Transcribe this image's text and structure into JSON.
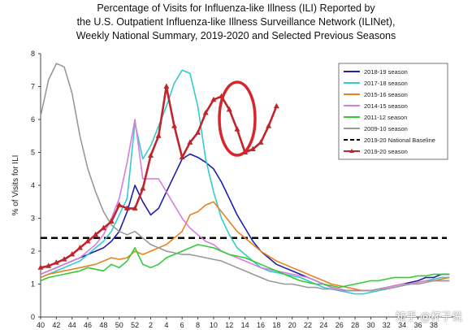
{
  "title_lines": [
    "Percentage of Visits for Influenza-like Illness (ILI) Reported by",
    "the U.S. Outpatient Influenza-like Illness Surveillance Network (ILINet),",
    "Weekly National Summary, 2019-2020 and Selected Previous Seasons"
  ],
  "watermark": "知乎 @杯子说",
  "chart_data": {
    "type": "line",
    "ylabel": "% of Visits for ILI",
    "xlabel": "",
    "ylim": [
      0,
      8
    ],
    "yticks": [
      0,
      1,
      2,
      3,
      4,
      5,
      6,
      7,
      8
    ],
    "x_tick_labels": [
      "40",
      "42",
      "44",
      "46",
      "48",
      "50",
      "52",
      "2",
      "4",
      "6",
      "8",
      "10",
      "12",
      "14",
      "16",
      "18",
      "20",
      "22",
      "24",
      "26",
      "28",
      "30",
      "32",
      "34",
      "36",
      "38"
    ],
    "grid": false,
    "legend_position": "top-right",
    "baseline": {
      "name": "2019-20 National Baseline",
      "value": 2.4,
      "color": "#000000"
    },
    "series": [
      {
        "name": "2018-19 season",
        "color": "#1f1fa8",
        "values": [
          1.3,
          1.4,
          1.5,
          1.6,
          1.7,
          1.8,
          1.9,
          2.0,
          2.1,
          2.3,
          2.6,
          3.2,
          4.0,
          3.5,
          3.1,
          3.3,
          3.8,
          4.3,
          4.8,
          4.95,
          4.85,
          4.7,
          4.5,
          4.1,
          3.6,
          3.1,
          2.7,
          2.3,
          2.0,
          1.8,
          1.6,
          1.5,
          1.4,
          1.3,
          1.2,
          1.1,
          1.0,
          0.9,
          0.85,
          0.8,
          0.8,
          0.8,
          0.8,
          0.85,
          0.9,
          0.95,
          1.0,
          1.05,
          1.1,
          1.2,
          1.2,
          1.3,
          1.3
        ]
      },
      {
        "name": "2017-18 season",
        "color": "#33cccc",
        "values": [
          1.2,
          1.3,
          1.4,
          1.5,
          1.6,
          1.7,
          1.9,
          2.1,
          2.3,
          2.6,
          3.1,
          3.6,
          5.9,
          4.8,
          5.2,
          5.8,
          6.4,
          7.1,
          7.5,
          7.4,
          6.4,
          4.8,
          3.8,
          3.0,
          2.5,
          2.1,
          1.9,
          1.7,
          1.5,
          1.4,
          1.35,
          1.3,
          1.25,
          1.2,
          1.1,
          1.0,
          0.9,
          0.85,
          0.8,
          0.75,
          0.7,
          0.7,
          0.75,
          0.8,
          0.85,
          0.9,
          0.95,
          1.0,
          1.05,
          1.1,
          1.15,
          1.2,
          1.2
        ]
      },
      {
        "name": "2015-16 season",
        "color": "#e8821e",
        "values": [
          1.2,
          1.3,
          1.35,
          1.4,
          1.45,
          1.5,
          1.55,
          1.6,
          1.7,
          1.8,
          1.75,
          1.8,
          2.0,
          1.9,
          2.0,
          2.1,
          2.2,
          2.4,
          2.6,
          3.1,
          3.2,
          3.4,
          3.5,
          3.2,
          2.9,
          2.6,
          2.4,
          2.2,
          2.0,
          1.85,
          1.7,
          1.6,
          1.5,
          1.4,
          1.3,
          1.2,
          1.1,
          1.0,
          0.95,
          0.9,
          0.85,
          0.8,
          0.8,
          0.85,
          0.9,
          0.95,
          1.0,
          1.0,
          1.05,
          1.1,
          1.1,
          1.15,
          1.2
        ]
      },
      {
        "name": "2014-15 season",
        "color": "#d77ee0",
        "values": [
          1.3,
          1.4,
          1.5,
          1.6,
          1.7,
          1.8,
          2.0,
          2.2,
          2.5,
          3.0,
          3.6,
          4.7,
          6.0,
          4.2,
          4.2,
          4.2,
          3.8,
          3.4,
          3.0,
          2.7,
          2.5,
          2.3,
          2.2,
          2.0,
          1.9,
          1.8,
          1.7,
          1.6,
          1.5,
          1.45,
          1.4,
          1.35,
          1.3,
          1.25,
          1.2,
          1.1,
          1.0,
          0.9,
          0.85,
          0.8,
          0.8,
          0.8,
          0.8,
          0.85,
          0.9,
          0.95,
          1.0,
          1.0,
          1.05,
          1.1,
          1.1,
          1.1,
          1.1
        ]
      },
      {
        "name": "2011-12 season",
        "color": "#33cc33",
        "values": [
          1.1,
          1.2,
          1.25,
          1.3,
          1.35,
          1.4,
          1.5,
          1.45,
          1.4,
          1.6,
          1.5,
          1.7,
          2.1,
          1.6,
          1.5,
          1.6,
          1.8,
          1.9,
          2.0,
          2.1,
          2.2,
          2.15,
          2.1,
          2.0,
          1.9,
          1.85,
          1.8,
          1.7,
          1.6,
          1.5,
          1.4,
          1.3,
          1.2,
          1.1,
          1.05,
          1.0,
          1.0,
          0.95,
          0.9,
          0.95,
          1.0,
          1.05,
          1.1,
          1.1,
          1.15,
          1.2,
          1.2,
          1.2,
          1.25,
          1.25,
          1.3,
          1.3,
          1.3
        ]
      },
      {
        "name": "2009-10 season",
        "color": "#999999",
        "values": [
          6.1,
          7.2,
          7.7,
          7.6,
          6.8,
          5.5,
          4.5,
          3.8,
          3.2,
          2.8,
          2.6,
          2.5,
          2.6,
          2.4,
          2.2,
          2.1,
          2.0,
          1.95,
          1.9,
          1.9,
          1.85,
          1.8,
          1.75,
          1.7,
          1.6,
          1.5,
          1.4,
          1.3,
          1.2,
          1.1,
          1.05,
          1.0,
          1.0,
          0.95,
          0.9,
          0.9,
          0.85,
          0.85,
          0.8,
          0.8,
          0.8,
          0.8,
          0.8,
          0.85,
          0.85,
          0.9,
          0.95,
          1.0,
          1.0,
          1.05,
          1.1,
          1.1,
          1.1
        ]
      },
      {
        "name": "2019-20 season",
        "color": "#c0242c",
        "values": [
          1.5,
          1.55,
          1.65,
          1.75,
          1.9,
          2.1,
          2.3,
          2.5,
          2.7,
          2.9,
          3.4,
          3.3,
          3.3,
          3.9,
          4.9,
          5.5,
          7.0,
          5.8,
          4.85,
          5.3,
          5.6,
          6.2,
          6.6,
          6.7,
          6.3,
          5.7,
          5.0,
          5.1,
          5.3,
          5.8,
          6.4
        ]
      }
    ]
  },
  "annotation": {
    "name": "red-ellipse-highlight",
    "color": "#d4262c"
  }
}
